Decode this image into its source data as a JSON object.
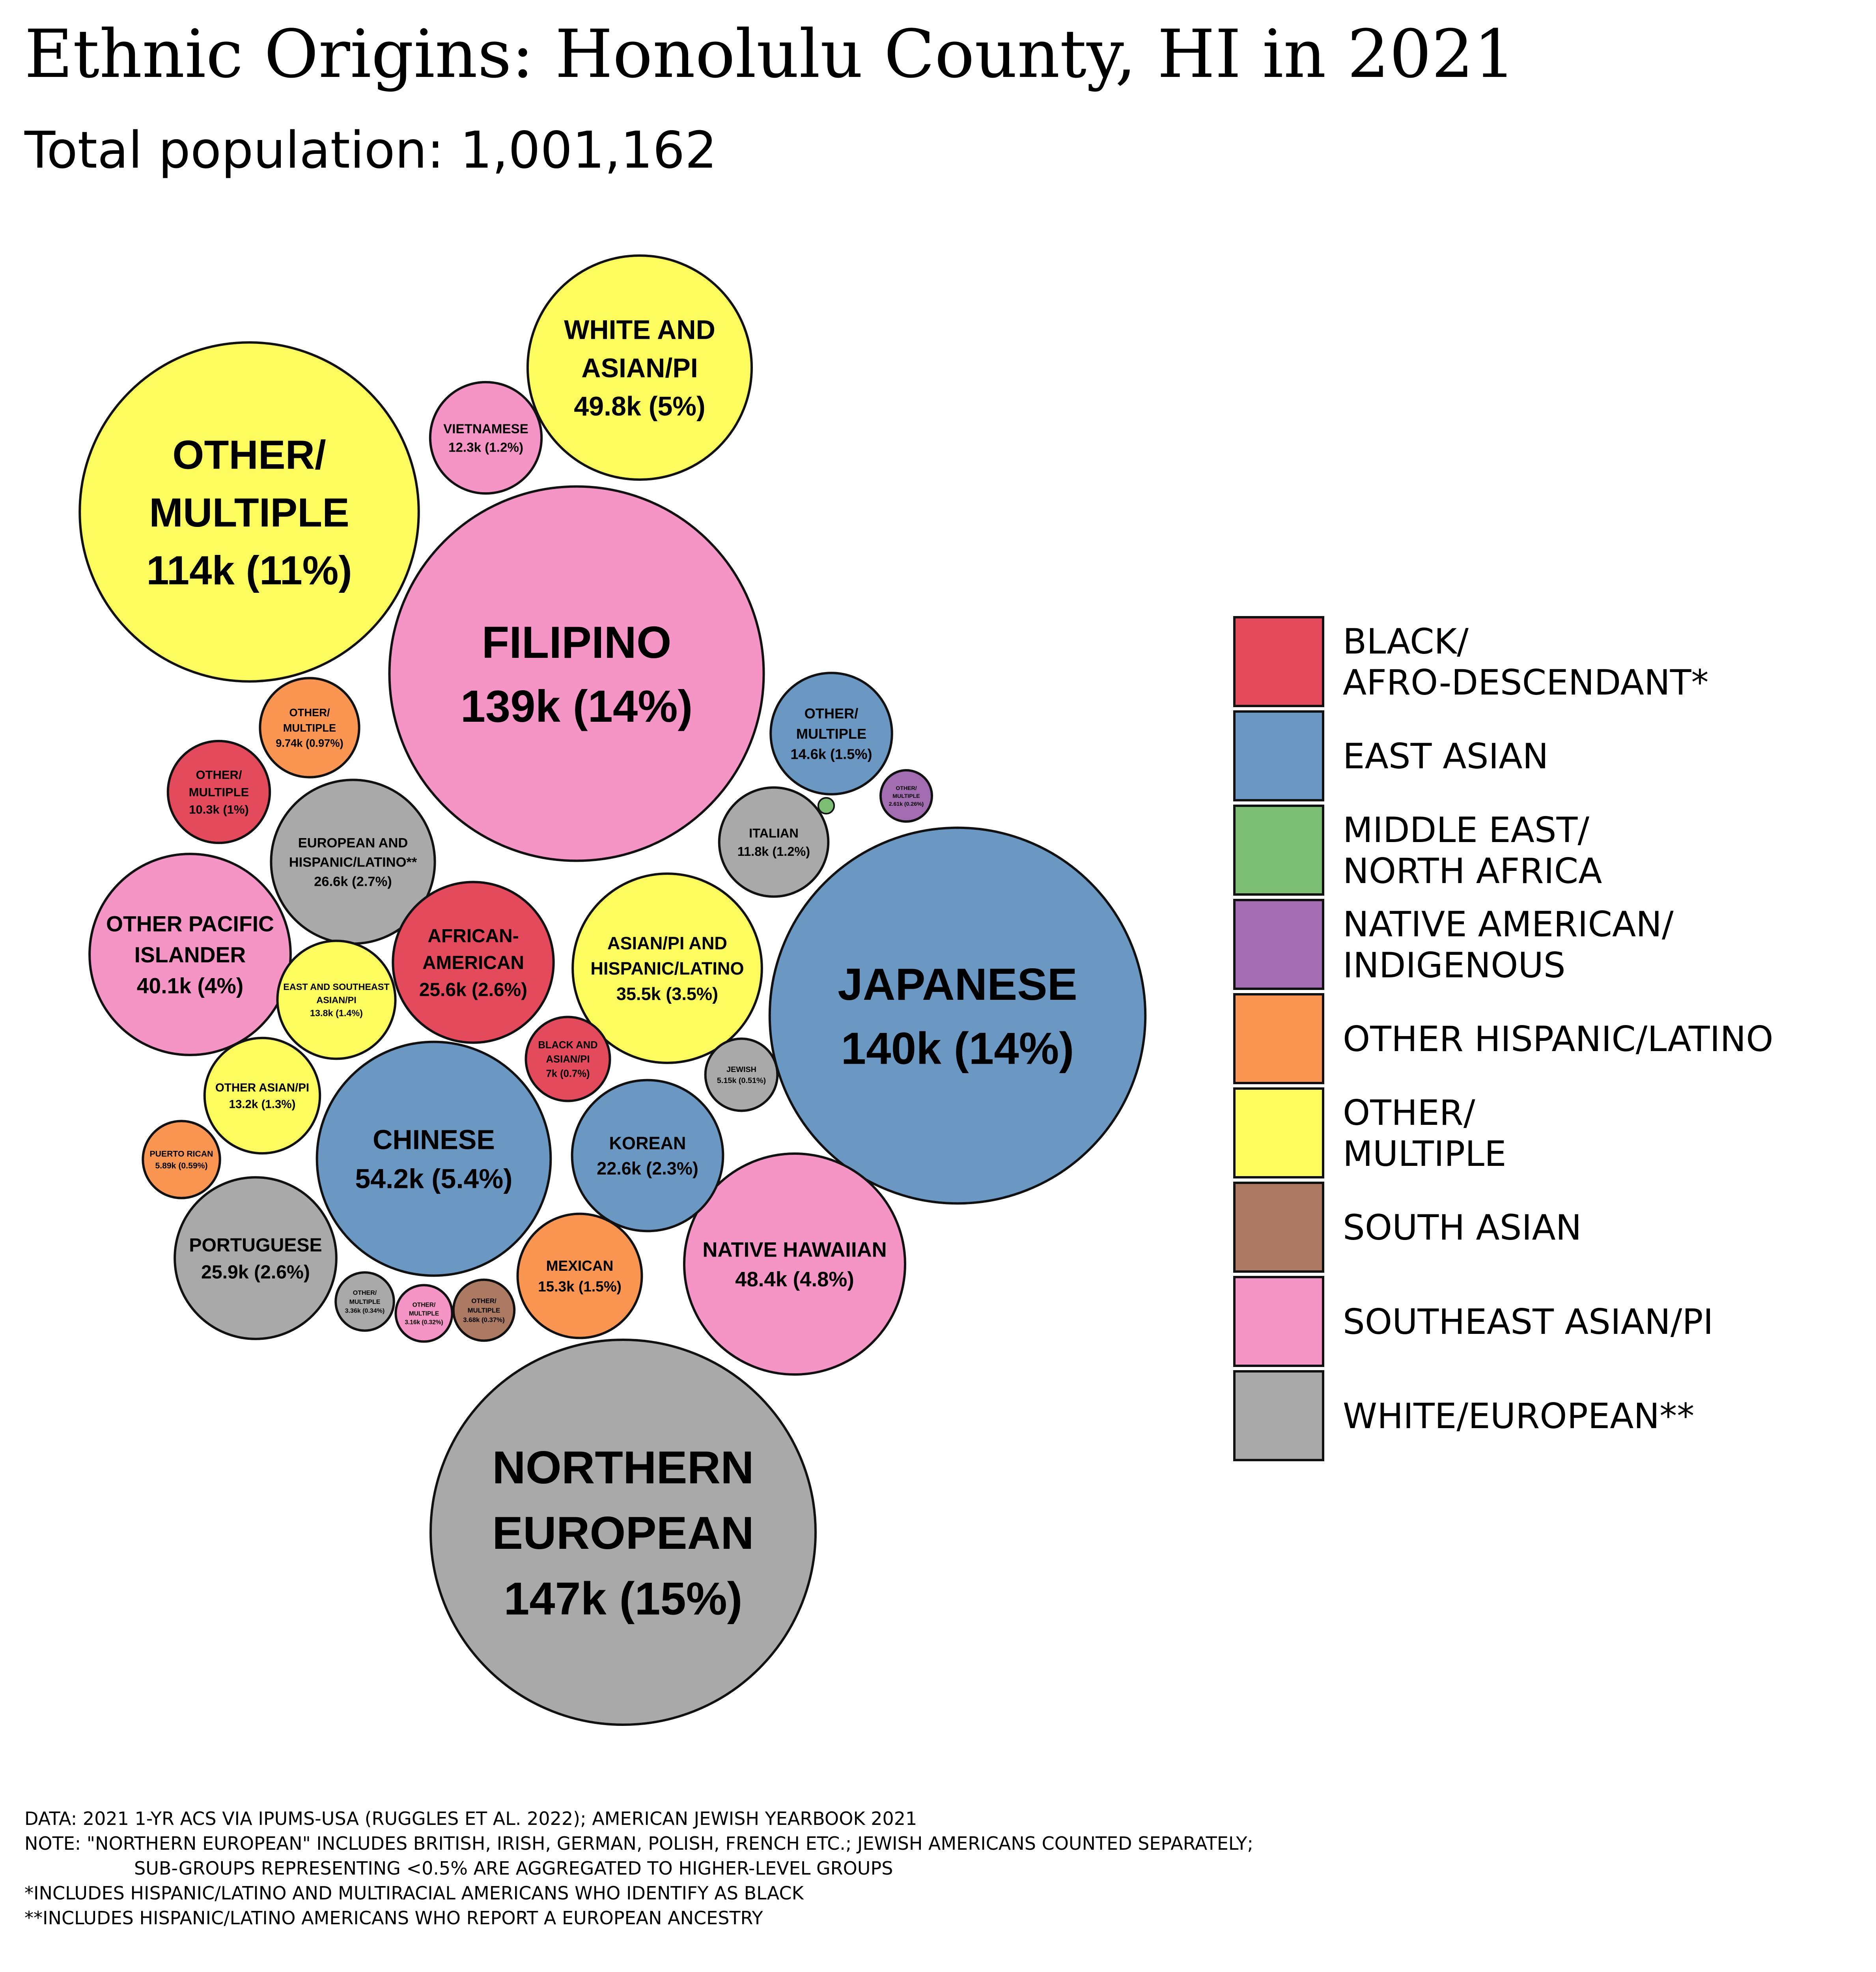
{
  "chart_data": {
    "type": "bubble",
    "title": "Ethnic Origins: Honolulu County, HI in 2021",
    "subtitle": "Total population: 1,001,162",
    "total_population": 1001162,
    "colors": {
      "BLACK": "#e34a5b",
      "EAST_ASIAN": "#6b97c3",
      "MENA": "#7bbd72",
      "NATIVE": "#a26cb0",
      "HISP": "#fa9652",
      "OTHER": "#fdfc5f",
      "SOUTH_ASIAN": "#ac7a62",
      "SE_ASIAN_PI": "#f595c6",
      "WHITE": "#a9a9a9"
    },
    "bubbles": [
      {
        "id": "northern-european",
        "group": "WHITE",
        "lines": [
          "NORTHERN",
          "EUROPEAN",
          "147k (15%)"
        ],
        "value": 147000
      },
      {
        "id": "japanese",
        "group": "EAST_ASIAN",
        "lines": [
          "JAPANESE",
          "140k (14%)"
        ],
        "value": 140000
      },
      {
        "id": "filipino",
        "group": "SE_ASIAN_PI",
        "lines": [
          "FILIPINO",
          "139k (14%)"
        ],
        "value": 139000
      },
      {
        "id": "other-multiple-main",
        "group": "OTHER",
        "lines": [
          "OTHER/",
          "MULTIPLE",
          "114k (11%)"
        ],
        "value": 114000
      },
      {
        "id": "chinese",
        "group": "EAST_ASIAN",
        "lines": [
          "CHINESE",
          "54.2k (5.4%)"
        ],
        "value": 54200
      },
      {
        "id": "white-and-asian-pi",
        "group": "OTHER",
        "lines": [
          "WHITE AND",
          "ASIAN/PI",
          "49.8k (5%)"
        ],
        "value": 49800
      },
      {
        "id": "native-hawaiian",
        "group": "SE_ASIAN_PI",
        "lines": [
          "NATIVE HAWAIIAN",
          "48.4k (4.8%)"
        ],
        "value": 48400
      },
      {
        "id": "other-pacific-islander",
        "group": "SE_ASIAN_PI",
        "lines": [
          "OTHER PACIFIC",
          "ISLANDER",
          "40.1k (4%)"
        ],
        "value": 40100
      },
      {
        "id": "asian-pi-and-hispanic",
        "group": "OTHER",
        "lines": [
          "ASIAN/PI AND",
          "HISPANIC/LATINO",
          "35.5k (3.5%)"
        ],
        "value": 35500
      },
      {
        "id": "european-and-hispanic",
        "group": "WHITE",
        "lines": [
          "EUROPEAN AND",
          "HISPANIC/LATINO**",
          "26.6k (2.7%)"
        ],
        "value": 26600
      },
      {
        "id": "portuguese",
        "group": "WHITE",
        "lines": [
          "PORTUGUESE",
          "25.9k (2.6%)"
        ],
        "value": 25900
      },
      {
        "id": "african-american",
        "group": "BLACK",
        "lines": [
          "AFRICAN-",
          "AMERICAN",
          "25.6k (2.6%)"
        ],
        "value": 25600
      },
      {
        "id": "korean",
        "group": "EAST_ASIAN",
        "lines": [
          "KOREAN",
          "22.6k (2.3%)"
        ],
        "value": 22600
      },
      {
        "id": "mexican",
        "group": "HISP",
        "lines": [
          "MEXICAN",
          "15.3k (1.5%)"
        ],
        "value": 15300
      },
      {
        "id": "east-asian-other",
        "group": "EAST_ASIAN",
        "lines": [
          "OTHER/",
          "MULTIPLE",
          "14.6k (1.5%)"
        ],
        "value": 14600
      },
      {
        "id": "east-and-southeast-asian",
        "group": "OTHER",
        "lines": [
          "EAST AND SOUTHEAST",
          "ASIAN/PI",
          "13.8k (1.4%)"
        ],
        "value": 13800
      },
      {
        "id": "other-asian-pi",
        "group": "OTHER",
        "lines": [
          "OTHER ASIAN/PI",
          "13.2k (1.3%)"
        ],
        "value": 13200
      },
      {
        "id": "vietnamese",
        "group": "SE_ASIAN_PI",
        "lines": [
          "VIETNAMESE",
          "12.3k (1.2%)"
        ],
        "value": 12300
      },
      {
        "id": "italian",
        "group": "WHITE",
        "lines": [
          "ITALIAN",
          "11.8k (1.2%)"
        ],
        "value": 11800
      },
      {
        "id": "black-other",
        "group": "BLACK",
        "lines": [
          "OTHER/",
          "MULTIPLE",
          "10.3k (1%)"
        ],
        "value": 10300
      },
      {
        "id": "hispanic-other",
        "group": "HISP",
        "lines": [
          "OTHER/",
          "MULTIPLE",
          "9.74k (0.97%)"
        ],
        "value": 9740
      },
      {
        "id": "black-and-asian-pi",
        "group": "BLACK",
        "lines": [
          "BLACK AND",
          "ASIAN/PI",
          "7k (0.7%)"
        ],
        "value": 7000
      },
      {
        "id": "puerto-rican",
        "group": "HISP",
        "lines": [
          "PUERTO RICAN",
          "5.89k (0.59%)"
        ],
        "value": 5890
      },
      {
        "id": "jewish",
        "group": "WHITE",
        "lines": [
          "JEWISH",
          "5.15k (0.51%)"
        ],
        "value": 5150
      },
      {
        "id": "south-asian-other",
        "group": "SOUTH_ASIAN",
        "lines": [
          "OTHER/",
          "MULTIPLE",
          "3.68k (0.37%)"
        ],
        "value": 3680
      },
      {
        "id": "white-other",
        "group": "WHITE",
        "lines": [
          "OTHER/",
          "MULTIPLE",
          "3.36k (0.34%)"
        ],
        "value": 3360
      },
      {
        "id": "se-asian-other",
        "group": "SE_ASIAN_PI",
        "lines": [
          "OTHER/",
          "MULTIPLE",
          "3.16k (0.32%)"
        ],
        "value": 3160
      },
      {
        "id": "native-other",
        "group": "NATIVE",
        "lines": [
          "OTHER/",
          "MULTIPLE",
          "2.61k (0.26%)"
        ],
        "value": 2610
      },
      {
        "id": "mena",
        "group": "MENA",
        "lines": [],
        "value": 250
      }
    ],
    "legend": [
      {
        "group": "BLACK",
        "lines": [
          "BLACK/",
          "AFRO-DESCENDANT*"
        ]
      },
      {
        "group": "EAST_ASIAN",
        "lines": [
          "EAST ASIAN"
        ]
      },
      {
        "group": "MENA",
        "lines": [
          "MIDDLE EAST/",
          "NORTH AFRICA"
        ]
      },
      {
        "group": "NATIVE",
        "lines": [
          "NATIVE AMERICAN/",
          "INDIGENOUS"
        ]
      },
      {
        "group": "HISP",
        "lines": [
          "OTHER HISPANIC/LATINO"
        ]
      },
      {
        "group": "OTHER",
        "lines": [
          "OTHER/",
          "MULTIPLE"
        ]
      },
      {
        "group": "SOUTH_ASIAN",
        "lines": [
          "SOUTH ASIAN"
        ]
      },
      {
        "group": "SE_ASIAN_PI",
        "lines": [
          "SOUTHEAST ASIAN/PI"
        ]
      },
      {
        "group": "WHITE",
        "lines": [
          "WHITE/EUROPEAN**"
        ]
      }
    ],
    "notes": [
      "DATA: 2021 1-YR ACS VIA IPUMS-USA (RUGGLES ET AL. 2022); AMERICAN JEWISH YEARBOOK 2021",
      "NOTE: \"NORTHERN EUROPEAN\" INCLUDES BRITISH, IRISH, GERMAN, POLISH, FRENCH ETC.; JEWISH AMERICANS COUNTED SEPARATELY;",
      "SUB-GROUPS REPRESENTING <0.5% ARE AGGREGATED TO HIGHER-LEVEL GROUPS",
      "*INCLUDES HISPANIC/LATINO AND MULTIRACIAL AMERICANS WHO IDENTIFY AS BLACK",
      "**INCLUDES HISPANIC/LATINO AMERICANS WHO REPORT A EUROPEAN ANCESTRY"
    ]
  }
}
